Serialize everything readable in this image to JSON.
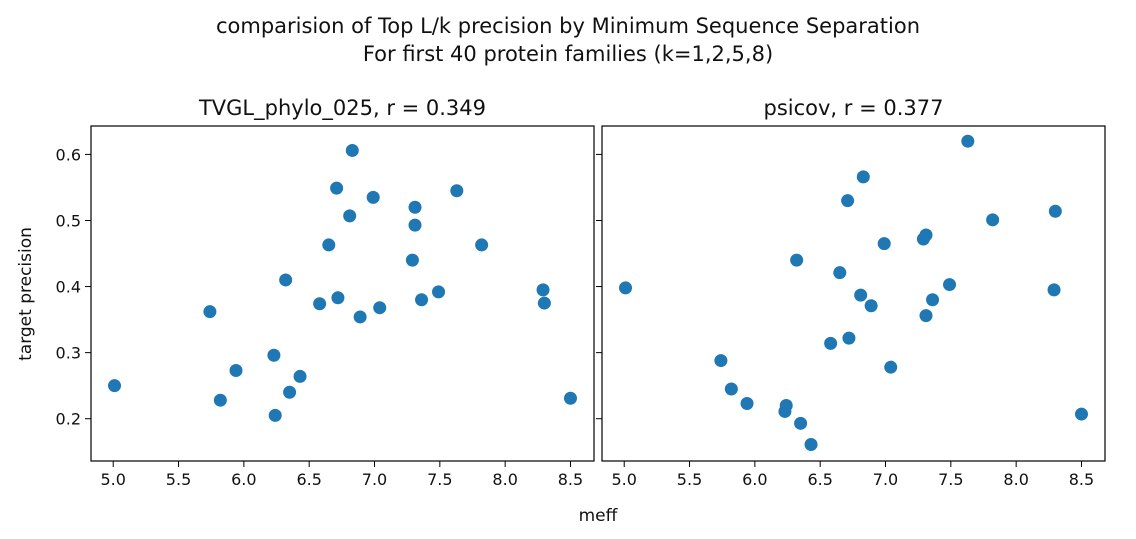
{
  "suptitle": {
    "line1": "comparision of Top L/k precision by Minimum Sequence Separation",
    "line2": "For first 40 protein families (k=1,2,5,8)"
  },
  "colors": {
    "marker": "#1f77b4",
    "axis": "#000000",
    "text": "#111111"
  },
  "xlabel": "meff",
  "ylabel": "target precision",
  "chart_data": [
    {
      "type": "scatter",
      "title": "TVGL_phylo_025, r = 0.349",
      "xlim": [
        4.83,
        8.68
      ],
      "ylim": [
        0.136,
        0.643
      ],
      "xticks": [
        5.0,
        5.5,
        6.0,
        6.5,
        7.0,
        7.5,
        8.0,
        8.5
      ],
      "xtick_labels": [
        "5.0",
        "5.5",
        "6.0",
        "6.5",
        "7.0",
        "7.5",
        "8.0",
        "8.5"
      ],
      "yticks": [
        0.2,
        0.3,
        0.4,
        0.5,
        0.6
      ],
      "ytick_labels": [
        "0.2",
        "0.3",
        "0.4",
        "0.5",
        "0.6"
      ],
      "points": [
        {
          "x": 5.01,
          "y": 0.25
        },
        {
          "x": 5.74,
          "y": 0.362
        },
        {
          "x": 5.82,
          "y": 0.228
        },
        {
          "x": 5.94,
          "y": 0.273
        },
        {
          "x": 6.23,
          "y": 0.296
        },
        {
          "x": 6.24,
          "y": 0.205
        },
        {
          "x": 6.32,
          "y": 0.41
        },
        {
          "x": 6.35,
          "y": 0.24
        },
        {
          "x": 6.43,
          "y": 0.264
        },
        {
          "x": 6.58,
          "y": 0.374
        },
        {
          "x": 6.65,
          "y": 0.463
        },
        {
          "x": 6.71,
          "y": 0.549
        },
        {
          "x": 6.72,
          "y": 0.383
        },
        {
          "x": 6.81,
          "y": 0.507
        },
        {
          "x": 6.83,
          "y": 0.606
        },
        {
          "x": 6.89,
          "y": 0.354
        },
        {
          "x": 6.99,
          "y": 0.535
        },
        {
          "x": 7.04,
          "y": 0.368
        },
        {
          "x": 7.29,
          "y": 0.44
        },
        {
          "x": 7.31,
          "y": 0.52
        },
        {
          "x": 7.31,
          "y": 0.493
        },
        {
          "x": 7.36,
          "y": 0.38
        },
        {
          "x": 7.49,
          "y": 0.392
        },
        {
          "x": 7.63,
          "y": 0.545
        },
        {
          "x": 7.82,
          "y": 0.463
        },
        {
          "x": 8.29,
          "y": 0.395
        },
        {
          "x": 8.3,
          "y": 0.375
        },
        {
          "x": 8.5,
          "y": 0.231
        }
      ]
    },
    {
      "type": "scatter",
      "title": "psicov, r = 0.377",
      "xlim": [
        4.83,
        8.68
      ],
      "ylim": [
        0.136,
        0.643
      ],
      "xticks": [
        5.0,
        5.5,
        6.0,
        6.5,
        7.0,
        7.5,
        8.0,
        8.5
      ],
      "xtick_labels": [
        "5.0",
        "5.5",
        "6.0",
        "6.5",
        "7.0",
        "7.5",
        "8.0",
        "8.5"
      ],
      "yticks": [
        0.2,
        0.3,
        0.4,
        0.5,
        0.6
      ],
      "ytick_labels": [],
      "points": [
        {
          "x": 5.01,
          "y": 0.398
        },
        {
          "x": 5.74,
          "y": 0.288
        },
        {
          "x": 5.82,
          "y": 0.245
        },
        {
          "x": 5.94,
          "y": 0.223
        },
        {
          "x": 6.23,
          "y": 0.211
        },
        {
          "x": 6.24,
          "y": 0.22
        },
        {
          "x": 6.32,
          "y": 0.44
        },
        {
          "x": 6.35,
          "y": 0.193
        },
        {
          "x": 6.43,
          "y": 0.161
        },
        {
          "x": 6.58,
          "y": 0.314
        },
        {
          "x": 6.65,
          "y": 0.421
        },
        {
          "x": 6.71,
          "y": 0.53
        },
        {
          "x": 6.72,
          "y": 0.322
        },
        {
          "x": 6.81,
          "y": 0.387
        },
        {
          "x": 6.83,
          "y": 0.566
        },
        {
          "x": 6.89,
          "y": 0.371
        },
        {
          "x": 6.99,
          "y": 0.465
        },
        {
          "x": 7.04,
          "y": 0.278
        },
        {
          "x": 7.29,
          "y": 0.472
        },
        {
          "x": 7.31,
          "y": 0.478
        },
        {
          "x": 7.31,
          "y": 0.356
        },
        {
          "x": 7.36,
          "y": 0.38
        },
        {
          "x": 7.49,
          "y": 0.403
        },
        {
          "x": 7.63,
          "y": 0.62
        },
        {
          "x": 7.82,
          "y": 0.501
        },
        {
          "x": 8.29,
          "y": 0.395
        },
        {
          "x": 8.3,
          "y": 0.514
        },
        {
          "x": 8.5,
          "y": 0.207
        }
      ]
    }
  ]
}
